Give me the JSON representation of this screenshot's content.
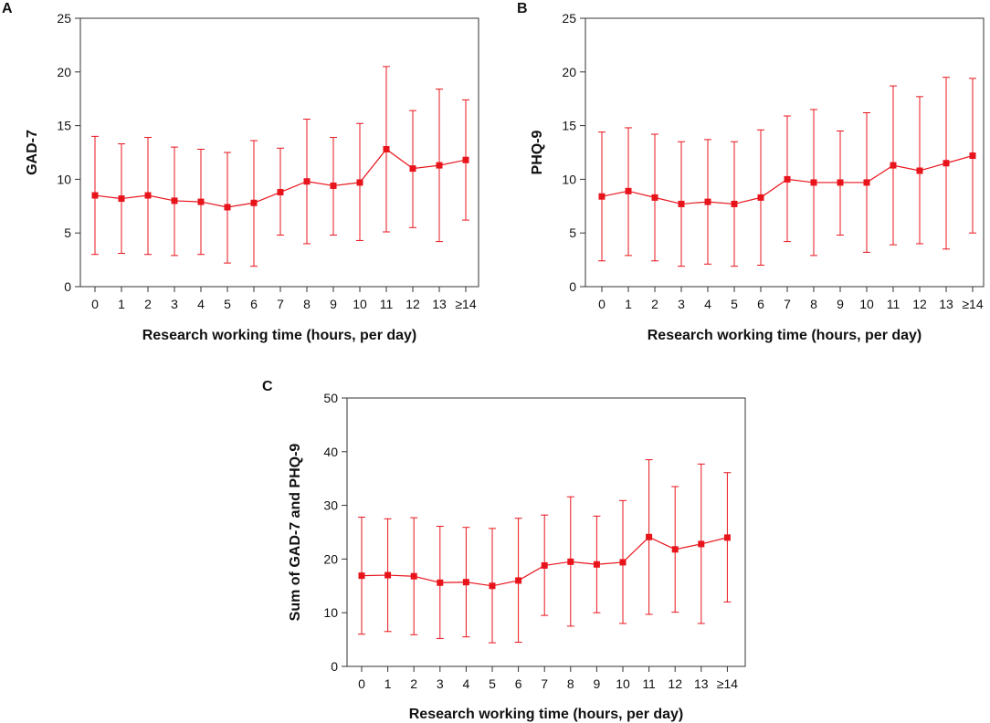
{
  "figure": {
    "series_color": "#e8141c",
    "axis_color": "#333333"
  },
  "chart_data": [
    {
      "panel": "A",
      "type": "line",
      "error_bars": true,
      "xlabel": "Research working time (hours, per day)",
      "ylabel": "GAD-7",
      "ylim": [
        0,
        25
      ],
      "yticks": [
        "0",
        "5",
        "10",
        "15",
        "20",
        "25"
      ],
      "categories": [
        "0",
        "1",
        "2",
        "3",
        "4",
        "5",
        "6",
        "7",
        "8",
        "9",
        "10",
        "11",
        "12",
        "13",
        "≥14"
      ],
      "values": [
        8.5,
        8.2,
        8.5,
        8.0,
        7.9,
        7.4,
        7.8,
        8.8,
        9.8,
        9.4,
        9.7,
        12.8,
        11.0,
        11.3,
        11.8
      ],
      "lower": [
        3.0,
        3.1,
        3.0,
        2.9,
        3.0,
        2.2,
        1.9,
        4.8,
        4.0,
        4.8,
        4.3,
        5.1,
        5.5,
        4.2,
        6.2
      ],
      "upper": [
        14.0,
        13.3,
        13.9,
        13.0,
        12.8,
        12.5,
        13.6,
        12.9,
        15.6,
        13.9,
        15.2,
        20.5,
        16.4,
        18.4,
        17.4
      ]
    },
    {
      "panel": "B",
      "type": "line",
      "error_bars": true,
      "xlabel": "Research working time (hours, per day)",
      "ylabel": "PHQ-9",
      "ylim": [
        0,
        25
      ],
      "yticks": [
        "0",
        "5",
        "10",
        "15",
        "20",
        "25"
      ],
      "categories": [
        "0",
        "1",
        "2",
        "3",
        "4",
        "5",
        "6",
        "7",
        "8",
        "9",
        "10",
        "11",
        "12",
        "13",
        "≥14"
      ],
      "values": [
        8.4,
        8.9,
        8.3,
        7.7,
        7.9,
        7.7,
        8.3,
        10.0,
        9.7,
        9.7,
        9.7,
        11.3,
        10.8,
        11.5,
        12.2
      ],
      "lower": [
        2.4,
        2.9,
        2.4,
        1.9,
        2.1,
        1.9,
        2.0,
        4.2,
        2.9,
        4.8,
        3.2,
        3.9,
        4.0,
        3.5,
        5.0
      ],
      "upper": [
        14.4,
        14.8,
        14.2,
        13.5,
        13.7,
        13.5,
        14.6,
        15.9,
        16.5,
        14.5,
        16.2,
        18.7,
        17.7,
        19.5,
        19.4
      ]
    },
    {
      "panel": "C",
      "type": "line",
      "error_bars": true,
      "xlabel": "Research working time (hours, per day)",
      "ylabel": "Sum of GAD-7 and PHQ-9",
      "ylim": [
        0,
        50
      ],
      "yticks": [
        "0",
        "10",
        "20",
        "30",
        "40",
        "50"
      ],
      "categories": [
        "0",
        "1",
        "2",
        "3",
        "4",
        "5",
        "6",
        "7",
        "8",
        "9",
        "10",
        "11",
        "12",
        "13",
        "≥14"
      ],
      "values": [
        16.9,
        17.0,
        16.8,
        15.6,
        15.7,
        15.0,
        16.0,
        18.8,
        19.5,
        19.0,
        19.4,
        24.1,
        21.8,
        22.8,
        24.0
      ],
      "lower": [
        6.0,
        6.5,
        5.9,
        5.2,
        5.5,
        4.4,
        4.5,
        9.5,
        7.5,
        10.0,
        8.0,
        9.7,
        10.1,
        8.0,
        12.0
      ],
      "upper": [
        27.8,
        27.5,
        27.7,
        26.1,
        25.9,
        25.7,
        27.6,
        28.2,
        31.6,
        28.0,
        30.9,
        38.5,
        33.5,
        37.7,
        36.1
      ]
    }
  ]
}
